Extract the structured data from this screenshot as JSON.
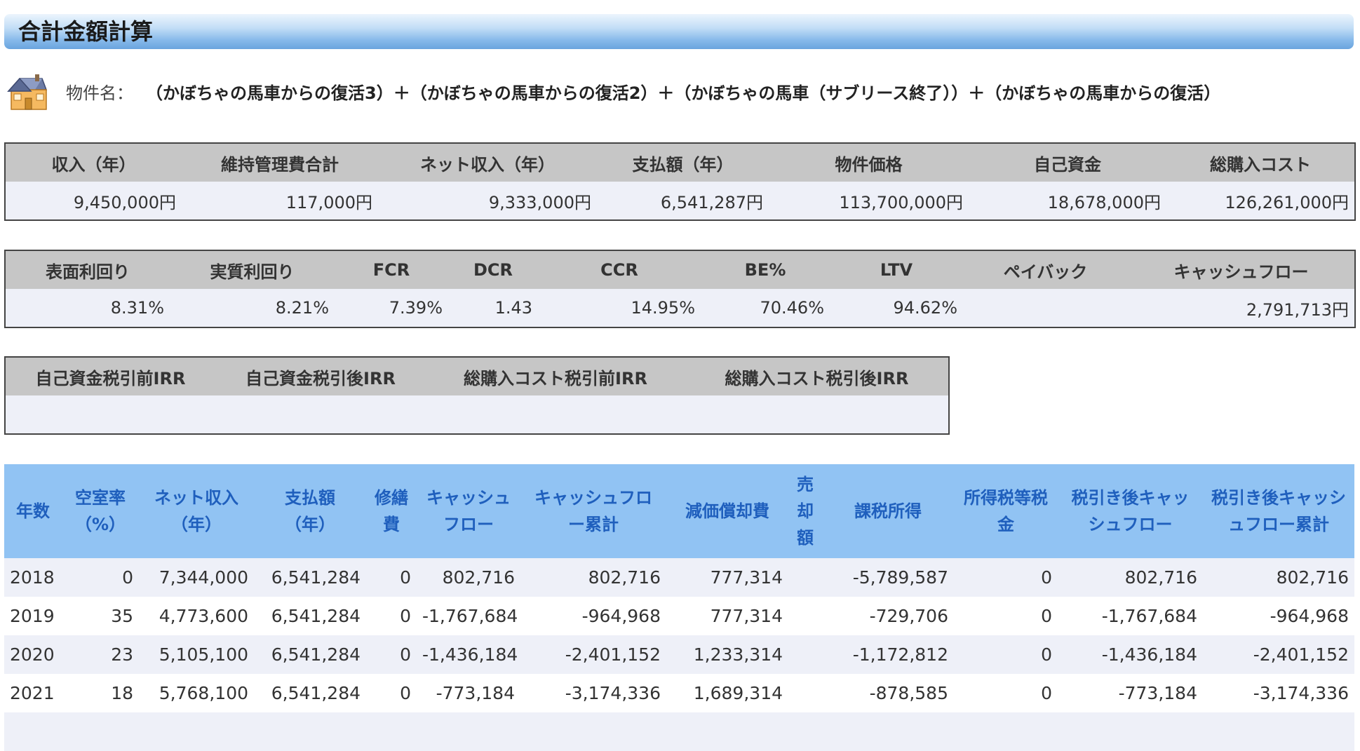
{
  "page": {
    "title": "合計金額計算",
    "property_label": "物件名：",
    "property_name": "（かぼちゃの馬車からの復活3）＋（かぼちゃの馬車からの復活2）＋（かぼちゃの馬車（サブリース終了））＋（かぼちゃの馬車からの復活）"
  },
  "summary1": {
    "headers": [
      "収入（年）",
      "維持管理費合計",
      "ネット収入（年）",
      "支払額（年）",
      "物件価格",
      "自己資金",
      "総購入コスト"
    ],
    "values": [
      "9,450,000円",
      "117,000円",
      "9,333,000円",
      "6,541,287円",
      "113,700,000円",
      "18,678,000円",
      "126,261,000円"
    ]
  },
  "summary2": {
    "headers": [
      "表面利回り",
      "実質利回り",
      "FCR",
      "DCR",
      "CCR",
      "BE%",
      "LTV",
      "ペイバック",
      "キャッシュフロー"
    ],
    "values": [
      "8.31%",
      "8.21%",
      "7.39%",
      "1.43",
      "14.95%",
      "70.46%",
      "94.62%",
      "",
      "2,791,713円"
    ]
  },
  "summary3": {
    "headers": [
      "自己資金税引前IRR",
      "自己資金税引後IRR",
      "総購入コスト税引前IRR",
      "総購入コスト税引後IRR"
    ],
    "values": [
      "",
      "",
      "",
      ""
    ]
  },
  "yearly": {
    "headers": [
      "年数",
      "空室率(%)",
      "ネット収入(年)",
      "支払額(年)",
      "修繕費",
      "キャッシュフロー",
      "キャッシュフロー累計",
      "減価償却費",
      "売却額",
      "課税所得",
      "所得税等税金",
      "税引き後キャッシュフロー",
      "税引き後キャッシュフロー累計"
    ],
    "header_lines": [
      [
        "年数"
      ],
      [
        "空室率",
        "（%）"
      ],
      [
        "ネット収入",
        "（年）"
      ],
      [
        "支払額",
        "（年）"
      ],
      [
        "修繕",
        "費"
      ],
      [
        "キャッシュ",
        "フロー"
      ],
      [
        "キャッシュフロ",
        "ー累計"
      ],
      [
        "減価償却費"
      ],
      [
        "売",
        "却",
        "額"
      ],
      [
        "課税所得"
      ],
      [
        "所得税等税",
        "金"
      ],
      [
        "税引き後キャッ",
        "シュフロー"
      ],
      [
        "税引き後キャッシ",
        "ュフロー累計"
      ]
    ],
    "rows": [
      [
        "2018",
        "0",
        "7,344,000",
        "6,541,284",
        "0",
        "802,716",
        "802,716",
        "777,314",
        "",
        "-5,789,587",
        "0",
        "802,716",
        "802,716"
      ],
      [
        "2019",
        "35",
        "4,773,600",
        "6,541,284",
        "0",
        "-1,767,684",
        "-964,968",
        "777,314",
        "",
        "-729,706",
        "0",
        "-1,767,684",
        "-964,968"
      ],
      [
        "2020",
        "23",
        "5,105,100",
        "6,541,284",
        "0",
        "-1,436,184",
        "-2,401,152",
        "1,233,314",
        "",
        "-1,172,812",
        "0",
        "-1,436,184",
        "-2,401,152"
      ],
      [
        "2021",
        "18",
        "5,768,100",
        "6,541,284",
        "0",
        "-773,184",
        "-3,174,336",
        "1,689,314",
        "",
        "-878,585",
        "0",
        "-773,184",
        "-3,174,336"
      ],
      [
        "",
        "",
        "",
        "",
        "",
        "",
        "",
        "",
        "",
        "",
        "",
        "",
        ""
      ]
    ]
  },
  "colors": {
    "title_gradient_top": "#ecf5fd",
    "title_gradient_bottom": "#6aa4de",
    "summary_header_bg": "#c6c6c6",
    "summary_value_bg": "#eef0f8",
    "yearly_header_bg": "#91c3f3",
    "yearly_header_text": "#1f5fbd",
    "negative_text": "#e01010"
  },
  "icons": {
    "property": "house-icon"
  }
}
